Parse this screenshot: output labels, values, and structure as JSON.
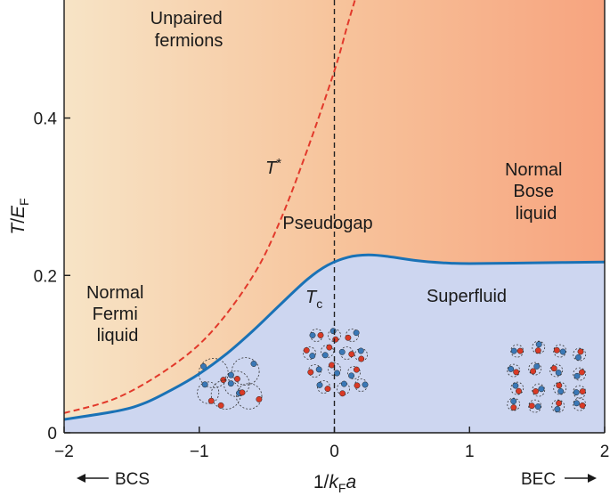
{
  "chart_data": {
    "type": "line",
    "title": "",
    "xlabel": {
      "prefix": "1/",
      "var": "k",
      "sub": "F",
      "suffix": "a"
    },
    "ylabel": {
      "var": "T",
      "sep": "/",
      "var2": "E",
      "sub": "F"
    },
    "xlim": [
      -2,
      2
    ],
    "ylim": [
      0,
      0.55
    ],
    "xticks": [
      {
        "value": -2,
        "label": "−2"
      },
      {
        "value": -1,
        "label": "−1"
      },
      {
        "value": 0,
        "label": "0"
      },
      {
        "value": 1,
        "label": "1"
      },
      {
        "value": 2,
        "label": "2"
      }
    ],
    "yticks": [
      {
        "value": 0,
        "label": "0"
      },
      {
        "value": 0.2,
        "label": "0.2"
      },
      {
        "value": 0.4,
        "label": "0.4"
      }
    ],
    "grid": false,
    "series": [
      {
        "name": "T*",
        "style": "dashed",
        "color": "#e2392b",
        "points": [
          [
            -2.0,
            0.025
          ],
          [
            -1.6,
            0.045
          ],
          [
            -1.2,
            0.085
          ],
          [
            -0.9,
            0.13
          ],
          [
            -0.6,
            0.2
          ],
          [
            -0.4,
            0.27
          ],
          [
            -0.2,
            0.36
          ],
          [
            0.0,
            0.46
          ],
          [
            0.1,
            0.52
          ],
          [
            0.17,
            0.56
          ]
        ]
      },
      {
        "name": "Tc",
        "style": "solid",
        "color": "#1a72b6",
        "points": [
          [
            -2.0,
            0.017
          ],
          [
            -1.6,
            0.028
          ],
          [
            -1.4,
            0.038
          ],
          [
            -1.2,
            0.055
          ],
          [
            -1.0,
            0.075
          ],
          [
            -0.8,
            0.1
          ],
          [
            -0.6,
            0.13
          ],
          [
            -0.4,
            0.163
          ],
          [
            -0.2,
            0.195
          ],
          [
            -0.05,
            0.213
          ],
          [
            0.1,
            0.223
          ],
          [
            0.25,
            0.226
          ],
          [
            0.4,
            0.224
          ],
          [
            0.6,
            0.219
          ],
          [
            0.8,
            0.216
          ],
          [
            1.0,
            0.215
          ],
          [
            1.5,
            0.216
          ],
          [
            2.0,
            0.217
          ]
        ]
      }
    ],
    "vertical_line": {
      "x": 0,
      "style": "dashed",
      "color": "#222222"
    },
    "region_labels": {
      "unpaired": [
        "Unpaired",
        "fermions"
      ],
      "normal_fermi": [
        "Normal",
        "Fermi",
        "liquid"
      ],
      "normal_bose": [
        "Normal",
        "Bose",
        "liquid"
      ],
      "pseudogap": "Pseudogap",
      "superfluid": "Superfluid"
    },
    "curve_labels": {
      "t_star": {
        "var": "T",
        "sup": "*"
      },
      "t_c": {
        "var": "T",
        "sub": "c"
      }
    },
    "bottom_labels": {
      "left": "BCS",
      "right": "BEC"
    },
    "colors": {
      "superfluid_fill": "#cdd6f0",
      "bg_left": "#f7e4c6",
      "bg_mid": "#f7c49c",
      "bg_right": "#f7a47f",
      "particle_red": "#d93a26",
      "particle_blue": "#3a78b6"
    },
    "illustrations": [
      {
        "name": "bcs-pairs",
        "x": -0.75,
        "y": 0.06,
        "type": "overlapping-pairs"
      },
      {
        "name": "crossover-pairs",
        "x": 0.0,
        "y": 0.09,
        "type": "crowded-pairs"
      },
      {
        "name": "bec-molecules",
        "x": 1.55,
        "y": 0.07,
        "type": "tight-molecules"
      }
    ]
  }
}
